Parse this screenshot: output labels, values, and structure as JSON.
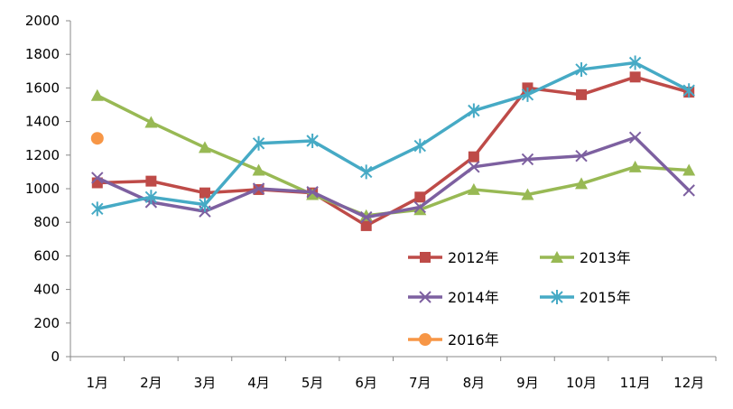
{
  "chart_data": {
    "type": "line",
    "categories": [
      "1月",
      "2月",
      "3月",
      "4月",
      "5月",
      "6月",
      "7月",
      "8月",
      "9月",
      "10月",
      "11月",
      "12月"
    ],
    "ylim": [
      0,
      2000
    ],
    "yticks": [
      "0",
      "200",
      "400",
      "600",
      "800",
      "1000",
      "1200",
      "1400",
      "1600",
      "1800",
      "2000"
    ],
    "ytick_values": [
      0,
      200,
      400,
      600,
      800,
      1000,
      1200,
      1400,
      1600,
      1800,
      2000
    ],
    "grid": false,
    "legend_position": "bottom-right inside plot",
    "series": [
      {
        "name": "2012年",
        "color": "#BE4B48",
        "marker": "square",
        "values": [
          1035,
          1045,
          975,
          995,
          975,
          780,
          950,
          1190,
          1600,
          1560,
          1665,
          1575
        ]
      },
      {
        "name": "2013年",
        "color": "#98B954",
        "marker": "triangle",
        "values": [
          1555,
          1395,
          1245,
          1110,
          965,
          840,
          875,
          995,
          965,
          1030,
          1130,
          1110
        ]
      },
      {
        "name": "2014年",
        "color": "#7D60A0",
        "marker": "x",
        "values": [
          1065,
          920,
          865,
          1000,
          980,
          830,
          890,
          1130,
          1175,
          1195,
          1305,
          990
        ]
      },
      {
        "name": "2015年",
        "color": "#46AAC5",
        "marker": "star",
        "values": [
          880,
          950,
          905,
          1270,
          1285,
          1100,
          1255,
          1465,
          1560,
          1710,
          1750,
          1585
        ]
      },
      {
        "name": "2016年",
        "color": "#F79646",
        "marker": "circle",
        "values": [
          1300,
          null,
          null,
          null,
          null,
          null,
          null,
          null,
          null,
          null,
          null,
          null
        ]
      }
    ]
  }
}
